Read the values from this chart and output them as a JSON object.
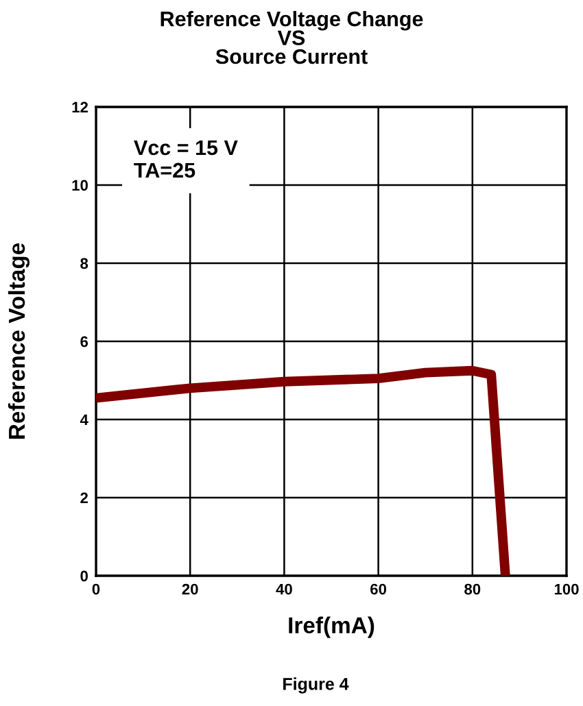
{
  "chart_data": {
    "type": "line",
    "title": "Reference Voltage Change\nVS\nSource Current",
    "xlabel": "Iref(mA)",
    "ylabel": "Reference Voltage",
    "annotations": [
      "Vcc = 15 V\nTA=25",
      "Figure 4"
    ],
    "x": [
      0,
      20,
      40,
      60,
      70,
      80,
      84,
      87
    ],
    "series": [
      {
        "color": "#800000",
        "values": [
          4.55,
          4.8,
          4.97,
          5.05,
          5.2,
          5.25,
          5.15,
          0
        ]
      }
    ],
    "xlim": [
      0,
      100
    ],
    "xticks": [
      0,
      20,
      40,
      60,
      80,
      100
    ],
    "ylim": [
      0,
      12
    ],
    "yticks": [
      0,
      2,
      4,
      6,
      8,
      10,
      12
    ],
    "grid": true,
    "marker": "none",
    "line_style": "solid",
    "legend": false
  }
}
